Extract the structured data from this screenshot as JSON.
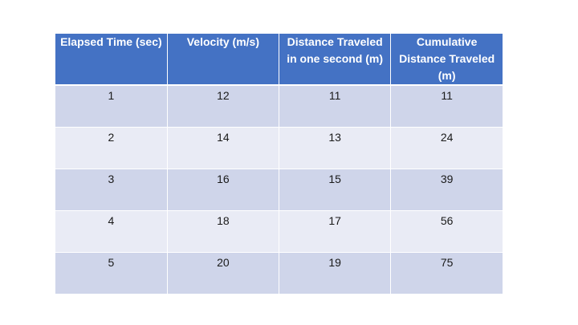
{
  "table": {
    "headers": [
      "Elapsed Time (sec)",
      "Velocity (m/s)",
      "Distance Traveled in one second (m)",
      "Cumulative Distance Traveled (m)"
    ],
    "rows": [
      [
        "1",
        "12",
        "11",
        "11"
      ],
      [
        "2",
        "14",
        "13",
        "24"
      ],
      [
        "3",
        "16",
        "15",
        "39"
      ],
      [
        "4",
        "18",
        "17",
        "56"
      ],
      [
        "5",
        "20",
        "19",
        "75"
      ]
    ]
  },
  "colors": {
    "header_background": "#4472c4",
    "header_text": "#ffffff",
    "row_band_dark": "#cfd5ea",
    "row_band_light": "#e9ebf5"
  }
}
